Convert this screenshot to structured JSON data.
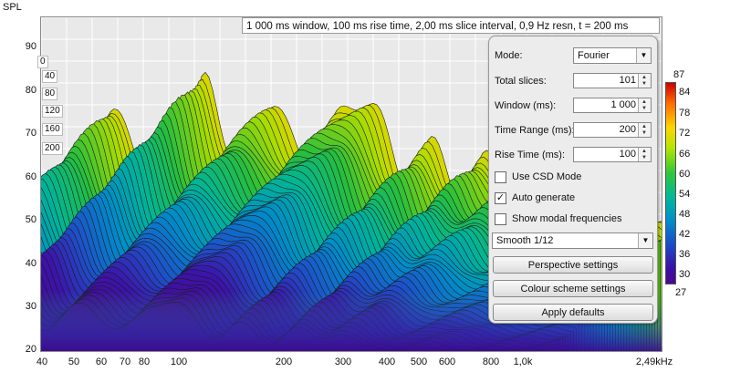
{
  "plot": {
    "y_axis_label": "SPL",
    "y_ticks": [
      "90",
      "80",
      "70",
      "60",
      "50",
      "40",
      "30",
      "20"
    ],
    "x_ticks": [
      "40",
      "50",
      "60",
      "70",
      "80",
      "100",
      "200",
      "300",
      "400",
      "500",
      "600",
      "800",
      "1,0k",
      "2,49kHz"
    ],
    "slice_ticks": [
      "0",
      "40",
      "80",
      "120",
      "160",
      "200"
    ],
    "summary": "1 000 ms window, 100 ms rise time, 2,00 ms slice interval, 0,9 Hz resn, t = 200 ms"
  },
  "panel": {
    "mode_label": "Mode:",
    "mode_value": "Fourier",
    "total_slices_label": "Total slices:",
    "total_slices_value": "101",
    "window_label": "Window (ms):",
    "window_value": "1 000",
    "time_range_label": "Time Range (ms):",
    "time_range_value": "200",
    "rise_time_label": "Rise Time (ms):",
    "rise_time_value": "100",
    "use_csd_label": "Use CSD Mode",
    "use_csd_checked": false,
    "auto_generate_label": "Auto generate",
    "auto_generate_checked": true,
    "show_modal_label": "Show modal frequencies",
    "show_modal_checked": false,
    "smoothing_value": "Smooth 1/12",
    "perspective_button": "Perspective settings",
    "colour_scheme_button": "Colour scheme settings",
    "apply_defaults_button": "Apply defaults",
    "check_mark": "✓"
  },
  "colorbar": {
    "max": "87",
    "min": "27",
    "ticks": [
      "84",
      "78",
      "72",
      "66",
      "60",
      "54",
      "48",
      "42",
      "36",
      "30"
    ]
  }
}
